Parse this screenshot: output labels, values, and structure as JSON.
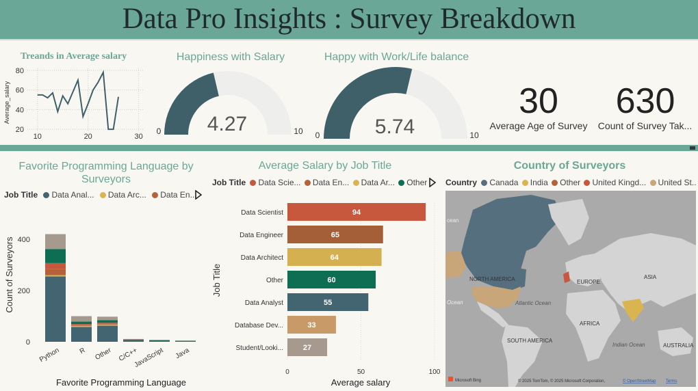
{
  "header": {
    "title": "Data Pro Insights : Survey Breakdown"
  },
  "line_chart": {
    "title": "Treands in Average salary",
    "ylabel": "Average_salary",
    "yticks": [
      "80",
      "60",
      "40",
      "20"
    ],
    "xticks": [
      "10",
      "20",
      "30"
    ],
    "line_color": "#3f5f69"
  },
  "gauge_salary": {
    "title": "Happiness with Salary",
    "value": "4.27",
    "min": "0",
    "max": "10",
    "value_num": 4.27,
    "max_num": 10
  },
  "gauge_balance": {
    "title": "Happy with Work/Life balance",
    "value": "5.74",
    "min": "0",
    "max": "10",
    "value_num": 5.74,
    "max_num": 10
  },
  "kpi_age": {
    "value": "30",
    "label": "Average Age of Survey"
  },
  "kpi_count": {
    "value": "630",
    "label": "Count of Survey Tak..."
  },
  "lang_chart": {
    "title": "Favorite Programming Language by Surveyors",
    "legend_title": "Job Title",
    "legend": [
      {
        "name": "Data Anal...",
        "color": "#436571"
      },
      {
        "name": "Data Arc...",
        "color": "#d9b451"
      },
      {
        "name": "Data En...",
        "color": "#b5623a"
      }
    ],
    "ylabel": "Count of Surveyors",
    "xlabel": "Favorite Programming Language",
    "yticks": [
      "400",
      "200",
      "0"
    ]
  },
  "salary_chart": {
    "title": "Average Salary by Job Title",
    "legend_title": "Job Title",
    "legend": [
      {
        "name": "Data Scie...",
        "color": "#c7573d"
      },
      {
        "name": "Data En...",
        "color": "#b5623a"
      },
      {
        "name": "Data Ar...",
        "color": "#d9b451"
      },
      {
        "name": "Other",
        "color": "#0e6e54"
      }
    ],
    "ylabel": "Job Title",
    "xlabel": "Average salary",
    "xticks": [
      "0",
      "50",
      "100"
    ]
  },
  "map": {
    "title": "Country of Surveyors",
    "legend_title": "Country",
    "legend": [
      {
        "name": "Canada",
        "color": "#566f7e"
      },
      {
        "name": "India",
        "color": "#d9b451"
      },
      {
        "name": "Other",
        "color": "#b5623a"
      },
      {
        "name": "United Kingd...",
        "color": "#c7573d"
      },
      {
        "name": "United St...",
        "color": "#c9a57a"
      }
    ],
    "labels": {
      "na": "NORTH AMERICA",
      "eu": "EUROPE",
      "asia": "ASIA",
      "africa": "AFRICA",
      "sa": "SOUTH AMERICA",
      "au": "AUSTRALIA",
      "atl": "Atlantic Ocean",
      "ind": "Indian Ocean",
      "oc1": "cean",
      "oc2": "Ocean"
    },
    "attribution": "© 2025 TomTom, © 2025 Microsoft Corporation,",
    "osm": "© OpenStreetMap",
    "terms": "Terms",
    "brand": "Microsoft Bing"
  },
  "chart_data": [
    {
      "type": "line",
      "title": "Treands in Average salary",
      "ylabel": "Average_salary",
      "xlim": [
        8,
        31
      ],
      "ylim": [
        18,
        82
      ],
      "x": [
        10,
        11,
        12,
        13,
        14,
        15,
        16,
        17,
        18,
        19,
        20,
        21,
        22,
        23,
        24,
        25,
        26
      ],
      "y": [
        55,
        55,
        52,
        57,
        38,
        54,
        46,
        58,
        70,
        33,
        46,
        60,
        68,
        78,
        20,
        20,
        53
      ]
    },
    {
      "type": "bar",
      "title": "Favorite Programming Language by Surveyors",
      "xlabel": "Favorite Programming Language",
      "ylabel": "Count of Surveyors",
      "ylim": [
        0,
        440
      ],
      "categories": [
        "Python",
        "R",
        "Other",
        "C/C++",
        "JavaScript",
        "Java"
      ],
      "series": [
        {
          "name": "Data Anal...",
          "color": "#436571",
          "values": [
            255,
            58,
            63,
            5,
            4,
            3
          ]
        },
        {
          "name": "Data Arc...",
          "color": "#d9b451",
          "values": [
            5,
            4,
            4,
            0,
            0,
            0
          ]
        },
        {
          "name": "Data En...",
          "color": "#b5623a",
          "values": [
            25,
            4,
            4,
            0,
            0,
            0
          ]
        },
        {
          "name": "Data Scie...",
          "color": "#c7573d",
          "values": [
            22,
            3,
            3,
            0,
            0,
            0
          ]
        },
        {
          "name": "Other",
          "color": "#0e6e54",
          "values": [
            55,
            10,
            10,
            3,
            2,
            1
          ]
        },
        {
          "name": "",
          "color": "#a69a8f",
          "values": [
            58,
            21,
            14,
            3,
            2,
            1
          ]
        }
      ]
    },
    {
      "type": "bar",
      "title": "Average Salary by Job Title",
      "xlabel": "Average salary",
      "ylabel": "Job Title",
      "xlim": [
        0,
        100
      ],
      "categories": [
        "Data Scientist",
        "Data Engineer",
        "Data Architect",
        "Other",
        "Data Analyst",
        "Database Dev...",
        "Student/Looki..."
      ],
      "values": [
        94,
        65,
        64,
        60,
        55,
        33,
        27
      ],
      "labels": [
        "94",
        "65",
        "64",
        "60",
        "55",
        "33",
        "27"
      ],
      "colors": [
        "#c7573d",
        "#a55f38",
        "#d4b050",
        "#0e6e54",
        "#436571",
        "#c79a68",
        "#a69a8f"
      ]
    }
  ]
}
